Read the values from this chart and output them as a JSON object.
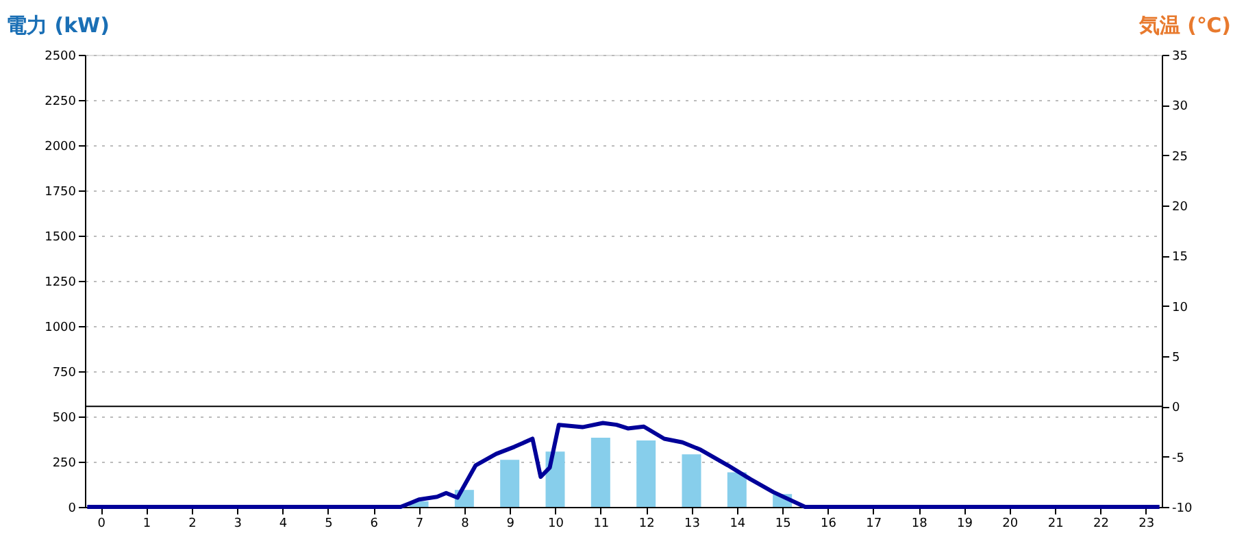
{
  "chart_data": {
    "type": "bar",
    "ylabel": "電力 (kW)",
    "y2label": "気温 (℃)",
    "x": [
      0,
      1,
      2,
      3,
      4,
      5,
      6,
      7,
      8,
      9,
      10,
      11,
      12,
      13,
      14,
      15,
      16,
      17,
      18,
      19,
      20,
      21,
      22,
      23
    ],
    "xlim": [
      -0.35,
      23.35
    ],
    "xticks": [
      0,
      1,
      2,
      3,
      4,
      5,
      6,
      7,
      8,
      9,
      10,
      11,
      12,
      13,
      14,
      15,
      16,
      17,
      18,
      19,
      20,
      21,
      22,
      23
    ],
    "ylim": [
      0,
      2500
    ],
    "yticks": [
      0,
      250,
      500,
      750,
      1000,
      1250,
      1500,
      1750,
      2000,
      2250,
      2500
    ],
    "y2lim": [
      -10,
      35
    ],
    "y2ticks": [
      -10,
      -5,
      0,
      5,
      10,
      15,
      20,
      25,
      30,
      35
    ],
    "grid": "y",
    "series": [
      {
        "type": "bar",
        "color": "#87ceeb",
        "values": [
          0,
          0,
          0,
          0,
          0,
          0,
          0,
          31,
          94,
          260,
          306,
          383,
          367,
          291,
          191,
          71,
          0,
          0,
          0,
          0,
          0,
          0,
          0,
          0
        ]
      },
      {
        "type": "line",
        "color": "#000099",
        "x": [
          -0.3,
          6.6,
          6.8,
          7.0,
          7.4,
          7.6,
          7.85,
          8.25,
          8.7,
          9.1,
          9.5,
          9.68,
          9.88,
          10.08,
          10.6,
          11.05,
          11.35,
          11.6,
          11.95,
          12.4,
          12.8,
          13.2,
          13.8,
          14.3,
          14.8,
          15.5,
          23.3
        ],
        "values": [
          0,
          0,
          20,
          41,
          56,
          77,
          51,
          230,
          293,
          332,
          377,
          166,
          217,
          454,
          441,
          464,
          454,
          434,
          444,
          377,
          357,
          316,
          230,
          153,
          82,
          0,
          0
        ]
      }
    ],
    "ref_lines": [
      {
        "axis": "y2",
        "value": 0,
        "color": "#000000"
      }
    ]
  }
}
